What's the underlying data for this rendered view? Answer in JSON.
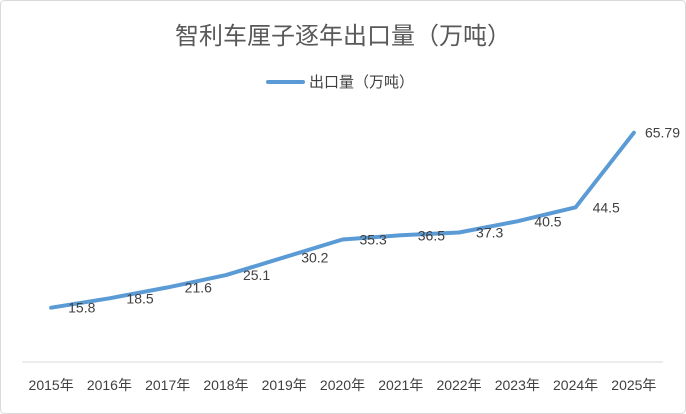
{
  "chart_data": {
    "type": "line",
    "title": "智利车厘子逐年出口量（万吨）",
    "xlabel": "",
    "ylabel": "",
    "categories": [
      "2015年",
      "2016年",
      "2017年",
      "2018年",
      "2019年",
      "2020年",
      "2021年",
      "2022年",
      "2023年",
      "2024年",
      "2025年"
    ],
    "series": [
      {
        "name": "出口量（万吨）",
        "color": "#5B9BD5",
        "values": [
          15.8,
          18.5,
          21.6,
          25.1,
          30.2,
          35.3,
          36.5,
          37.3,
          40.5,
          44.5,
          65.79
        ]
      }
    ],
    "ylim": [
      0,
      70
    ],
    "grid": false,
    "legend": "top",
    "data_labels": "right"
  }
}
